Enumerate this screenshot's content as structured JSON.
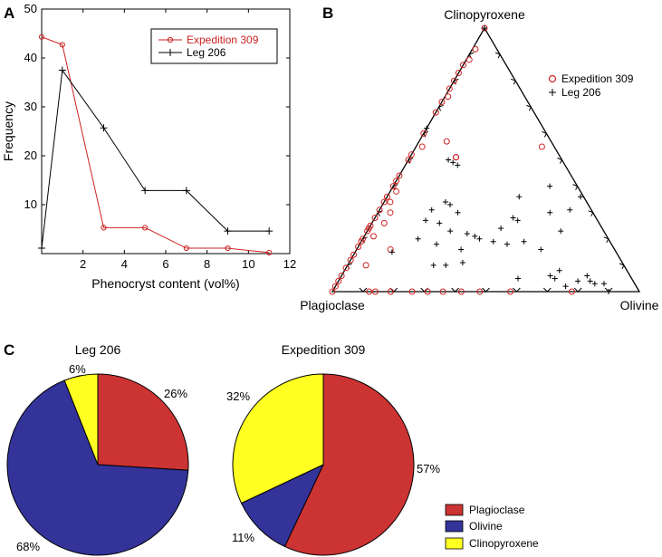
{
  "panels": {
    "a": "A",
    "b": "B",
    "c": "C"
  },
  "colors": {
    "expedition": "#cc2222",
    "leg": "#000000",
    "plagioclase": "#cc3333",
    "olivine": "#333399",
    "clinopyroxene": "#ffff22"
  },
  "chart_data": [
    {
      "type": "line",
      "title": "",
      "xlabel": "Phenocryst content (vol%)",
      "ylabel": "Frequency",
      "xlim": [
        0,
        12
      ],
      "ylim": [
        0,
        50
      ],
      "xticks": [
        2,
        4,
        6,
        8,
        10,
        12
      ],
      "yticks": [
        10,
        20,
        30,
        40,
        50
      ],
      "legend_position": "top-right",
      "series": [
        {
          "name": "Expedition 309",
          "marker": "circle",
          "x": [
            0,
            1,
            3,
            5,
            7,
            9,
            11
          ],
          "y": [
            44.3,
            42.7,
            5.3,
            5.3,
            1.1,
            1.1,
            0.2
          ]
        },
        {
          "name": "Leg 206",
          "marker": "plus",
          "x": [
            0,
            1,
            3,
            5,
            7,
            9,
            11
          ],
          "y": [
            1.1,
            37.5,
            25.7,
            12.9,
            12.9,
            4.6,
            4.6
          ]
        }
      ]
    },
    {
      "type": "ternary",
      "title": "",
      "vertices": {
        "top": "Clinopyroxene",
        "left": "Plagioclase",
        "right": "Olivine"
      },
      "legend_position": "top-right",
      "series": [
        {
          "name": "Expedition 309",
          "marker": "circle",
          "points": [
            [
              0.0,
              1.0
            ],
            [
              0.0,
              0.86
            ],
            [
              0.0,
              0.83
            ],
            [
              0.0,
              0.8
            ],
            [
              0.0,
              0.77
            ],
            [
              0.0,
              0.72
            ],
            [
              0.0,
              0.68
            ],
            [
              0.0,
              0.6
            ],
            [
              0.0,
              0.52
            ],
            [
              0.0,
              0.5
            ],
            [
              0.0,
              0.44
            ],
            [
              0.0,
              0.42
            ],
            [
              0.0,
              0.4
            ],
            [
              0.0,
              0.36
            ],
            [
              0.0,
              0.34
            ],
            [
              0.0,
              0.31
            ],
            [
              0.0,
              0.28
            ],
            [
              0.0,
              0.25
            ],
            [
              0.0,
              0.23
            ],
            [
              0.0,
              0.2
            ],
            [
              0.0,
              0.19
            ],
            [
              0.0,
              0.17
            ],
            [
              0.0,
              0.14
            ],
            [
              0.0,
              0.12
            ],
            [
              0.0,
              0.09
            ],
            [
              0.0,
              0.06
            ],
            [
              0.0,
              0.04
            ],
            [
              0.0,
              0.02
            ],
            [
              0.01,
              0.92
            ],
            [
              0.01,
              0.88
            ],
            [
              0.01,
              0.74
            ],
            [
              0.02,
              0.38
            ],
            [
              0.02,
              0.55
            ],
            [
              0.03,
              0.21
            ],
            [
              0.04,
              0.26
            ],
            [
              0.04,
              0.3
            ],
            [
              0.06,
              0.1
            ],
            [
              0.09,
              0.57
            ],
            [
              0.11,
              0.16
            ],
            [
              0.15,
              0.51
            ],
            [
              0.15,
              0.51
            ],
            [
              0.41,
              0.55
            ],
            [
              0.02,
              0.34
            ],
            [
              0.0,
              0.0
            ],
            [
              0.12,
              0.0
            ],
            [
              0.14,
              0.0
            ],
            [
              0.19,
              0.0
            ],
            [
              0.26,
              0.0
            ],
            [
              0.31,
              0.0
            ],
            [
              0.36,
              0.0
            ],
            [
              0.42,
              0.0
            ],
            [
              0.48,
              0.0
            ],
            [
              0.58,
              0.0
            ],
            [
              0.78,
              0.0
            ],
            [
              0.0,
              0.24
            ]
          ]
        },
        {
          "name": "Leg 206",
          "marker": "plus",
          "points": [
            [
              0.0,
              1.0
            ],
            [
              0.0,
              0.62
            ],
            [
              0.13,
              0.5
            ],
            [
              0.15,
              0.49
            ],
            [
              0.17,
              0.48
            ],
            [
              0.12,
              0.15
            ],
            [
              0.17,
              0.27
            ],
            [
              0.18,
              0.2
            ],
            [
              0.17,
              0.31
            ],
            [
              0.2,
              0.34
            ],
            [
              0.22,
              0.33
            ],
            [
              0.26,
              0.3
            ],
            [
              0.27,
              0.23
            ],
            [
              0.25,
              0.18
            ],
            [
              0.28,
              0.1
            ],
            [
              0.33,
              0.22
            ],
            [
              0.36,
              0.21
            ],
            [
              0.38,
              0.2
            ],
            [
              0.34,
              0.16
            ],
            [
              0.37,
              0.11
            ],
            [
              0.43,
              0.36
            ],
            [
              0.45,
              0.28
            ],
            [
              0.43,
              0.24
            ],
            [
              0.47,
              0.27
            ],
            [
              0.51,
              0.4
            ],
            [
              0.53,
              0.19
            ],
            [
              0.58,
              0.05
            ],
            [
              0.63,
              0.23
            ],
            [
              0.68,
              0.06
            ],
            [
              0.7,
              0.08
            ],
            [
              0.78,
              0.04
            ],
            [
              0.82,
              0.04
            ],
            [
              0.9,
              0.0
            ],
            [
              0.63,
              0.36
            ],
            [
              0.43,
              0.19
            ],
            [
              0.87,
              0.03
            ],
            [
              0.84,
              0.03
            ],
            [
              0.22,
              0.26
            ],
            [
              0.32,
              0.1
            ],
            [
              0.56,
              0.3
            ],
            [
              0.6,
              0.16
            ],
            [
              0.48,
              0.18
            ],
            [
              0.8,
              0.06
            ],
            [
              0.7,
              0.05
            ],
            [
              0.75,
              0.02
            ],
            [
              0.62,
              0.31
            ]
          ]
        }
      ]
    },
    {
      "type": "pie",
      "title": "Leg 206",
      "slices": [
        {
          "label": "Plagioclase",
          "value": 26,
          "text": "26%"
        },
        {
          "label": "Olivine",
          "value": 68,
          "text": "68%"
        },
        {
          "label": "Clinopyroxene",
          "value": 6,
          "text": "6%"
        }
      ]
    },
    {
      "type": "pie",
      "title": "Expedition 309",
      "slices": [
        {
          "label": "Plagioclase",
          "value": 57,
          "text": "57%"
        },
        {
          "label": "Olivine",
          "value": 11,
          "text": "11%"
        },
        {
          "label": "Clinopyroxene",
          "value": 32,
          "text": "32%"
        }
      ],
      "legend": [
        "Plagioclase",
        "Olivine",
        "Clinopyroxene"
      ]
    }
  ]
}
